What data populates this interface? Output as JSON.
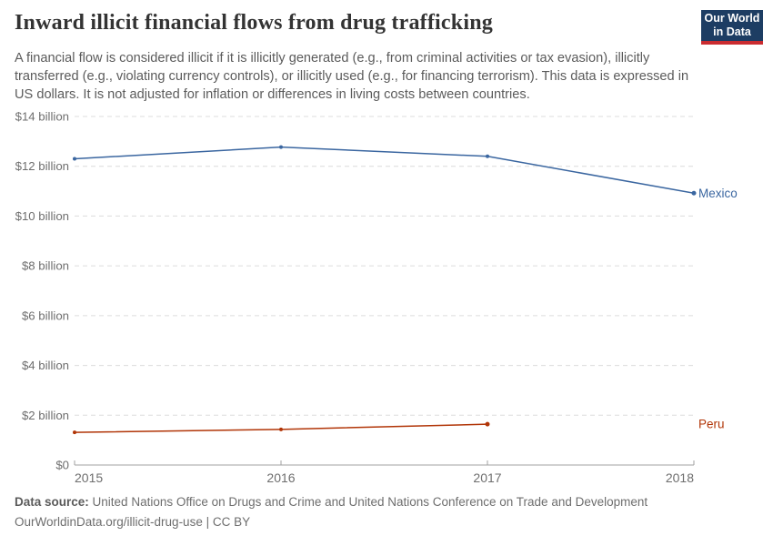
{
  "header": {
    "title": "Inward illicit financial flows from drug trafficking",
    "subtitle": "A financial flow is considered illicit if it is illicitly generated (e.g., from criminal activities or tax evasion), illicitly transferred (e.g., violating currency controls), or illicitly used (e.g., for financing terrorism). This data is expressed in US dollars. It is not adjusted for inflation or differences in living costs between countries.",
    "logo": {
      "line1": "Our World",
      "line2": "in Data",
      "bg_color": "#1d3d63",
      "stripe_color": "#ca2c30"
    }
  },
  "chart_data": {
    "type": "line",
    "title": "Inward illicit financial flows from drug trafficking",
    "unit": "US dollars",
    "x": [
      2015,
      2016,
      2017,
      2018
    ],
    "x_tick_labels": [
      "2015",
      "2016",
      "2017",
      "2018"
    ],
    "ylim": [
      0,
      14
    ],
    "y_ticks": [
      0,
      2,
      4,
      6,
      8,
      10,
      12,
      14
    ],
    "y_tick_labels": [
      "$0",
      "$2 billion",
      "$4 billion",
      "$6 billion",
      "$8 billion",
      "$10 billion",
      "$12 billion",
      "$14 billion"
    ],
    "grid": "horizontal-dashed",
    "legend_position": "right-end-of-line",
    "series": [
      {
        "name": "Mexico",
        "color": "#3a66a0",
        "values": [
          12.3,
          12.77,
          12.4,
          10.92
        ]
      },
      {
        "name": "Peru",
        "color": "#b13507",
        "values": [
          1.31,
          1.43,
          1.64,
          null
        ]
      }
    ],
    "axis_color": "#a1a1a1",
    "grid_color": "#dcdcdc"
  },
  "footer": {
    "source_label": "Data source:",
    "source_text": "United Nations Office on Drugs and Crime and United Nations Conference on Trade and Development",
    "attribution": "OurWorldinData.org/illicit-drug-use | CC BY"
  }
}
